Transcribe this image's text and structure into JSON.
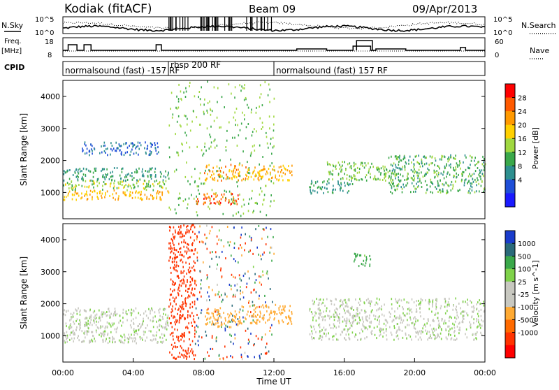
{
  "header": {
    "station": "Kodiak (fitACF)",
    "beam": "Beam 09",
    "date": "09/Apr/2013"
  },
  "left_labels": {
    "nsky": "N.Sky",
    "freq": "Freq.",
    "freq_unit": "[MHz]",
    "cpid": "CPID"
  },
  "right_labels": {
    "nsearch": "N.Search",
    "nave": "Nave"
  },
  "noise_panel": {
    "left_ticks": [
      "10^5",
      "10^0"
    ],
    "right_ticks": [
      "10^5",
      "10^0"
    ]
  },
  "freq_panel": {
    "left_ticks": [
      "18",
      "8"
    ],
    "right_ticks": [
      "60",
      "0"
    ]
  },
  "cpid_panel": {
    "segments": [
      {
        "label": "normalsound (fast) -157 RF",
        "start": "00:00",
        "end": "06:00"
      },
      {
        "label": "rbsp 200 RF",
        "start": "06:00",
        "end": "12:00"
      },
      {
        "label": "normalsound (fast) 157 RF",
        "start": "12:00",
        "end": "24:00"
      }
    ]
  },
  "x_axis": {
    "label": "Time UT",
    "ticks": [
      "00:00",
      "04:00",
      "08:00",
      "12:00",
      "16:00",
      "20:00",
      "00:00"
    ]
  },
  "power_colorbar": {
    "label": "Power [dB]",
    "ticks": [
      "28",
      "24",
      "20",
      "16",
      "12",
      "8",
      "4"
    ],
    "colors": [
      "#ff0000",
      "#ff5a00",
      "#ff9900",
      "#ffd000",
      "#a0d840",
      "#3aa84a",
      "#2d8f8f",
      "#1f4fd8",
      "#1a1aff"
    ]
  },
  "velocity_colorbar": {
    "label": "Velocity [m s^-1]",
    "ticks": [
      "1000",
      "500",
      "100",
      "25",
      "-25",
      "-100",
      "-500",
      "-1000"
    ],
    "colors": [
      "#1a3ccc",
      "#2a6a7a",
      "#3aa84a",
      "#7fd24a",
      "#c8c8c0",
      "#c8c8c0",
      "#ffaa33",
      "#ff6a00",
      "#ff3300",
      "#ff0000"
    ]
  },
  "chart_data": [
    {
      "type": "heatmap",
      "panel": "power",
      "ylabel": "Slant Range [km]",
      "xlabel": "Time UT",
      "ylim": [
        180,
        4500
      ],
      "xlim": [
        0,
        24
      ],
      "yticks": [
        1000,
        2000,
        3000,
        4000
      ],
      "colorbar_label": "Power [dB]",
      "regions": [
        {
          "t0": 0.0,
          "t1": 6.0,
          "r0": 800,
          "r1": 1100,
          "value": 22
        },
        {
          "t0": 0.0,
          "t1": 6.0,
          "r0": 1100,
          "r1": 1400,
          "value": 16
        },
        {
          "t0": 0.0,
          "t1": 6.0,
          "r0": 1400,
          "r1": 1800,
          "value": 10
        },
        {
          "t0": 1.0,
          "t1": 5.5,
          "r0": 2200,
          "r1": 2600,
          "value": 6
        },
        {
          "t0": 6.0,
          "t1": 12.0,
          "r0": 300,
          "r1": 4500,
          "value": 14
        },
        {
          "t0": 7.5,
          "t1": 10.0,
          "r0": 650,
          "r1": 1000,
          "value": 27
        },
        {
          "t0": 8.0,
          "t1": 10.5,
          "r0": 1400,
          "r1": 1900,
          "value": 24
        },
        {
          "t0": 10.5,
          "t1": 13.0,
          "r0": 1400,
          "r1": 1900,
          "value": 22
        },
        {
          "t0": 14.0,
          "t1": 16.5,
          "r0": 1000,
          "r1": 1400,
          "value": 10
        },
        {
          "t0": 15.0,
          "t1": 18.5,
          "r0": 1400,
          "r1": 2000,
          "value": 14
        },
        {
          "t0": 18.5,
          "t1": 24.0,
          "r0": 1000,
          "r1": 2200,
          "value": 12
        }
      ]
    },
    {
      "type": "heatmap",
      "panel": "velocity",
      "ylabel": "Slant Range [km]",
      "xlabel": "Time UT",
      "ylim": [
        180,
        4500
      ],
      "xlim": [
        0,
        24
      ],
      "yticks": [
        1000,
        2000,
        3000,
        4000
      ],
      "colorbar_label": "Velocity [m s^-1]",
      "regions": [
        {
          "t0": 0.0,
          "t1": 6.0,
          "r0": 800,
          "r1": 1900,
          "value": 0
        },
        {
          "t0": 6.0,
          "t1": 7.5,
          "r0": 300,
          "r1": 4500,
          "value": -800
        },
        {
          "t0": 7.5,
          "t1": 12.0,
          "r0": 300,
          "r1": 4500,
          "value": 200
        },
        {
          "t0": 8.0,
          "t1": 10.0,
          "r0": 1300,
          "r1": 1900,
          "value": -300
        },
        {
          "t0": 10.0,
          "t1": 13.0,
          "r0": 1400,
          "r1": 2000,
          "value": -400
        },
        {
          "t0": 14.0,
          "t1": 24.0,
          "r0": 900,
          "r1": 2200,
          "value": 0
        },
        {
          "t0": 16.5,
          "t1": 17.5,
          "r0": 3200,
          "r1": 3600,
          "value": 150
        }
      ]
    }
  ]
}
